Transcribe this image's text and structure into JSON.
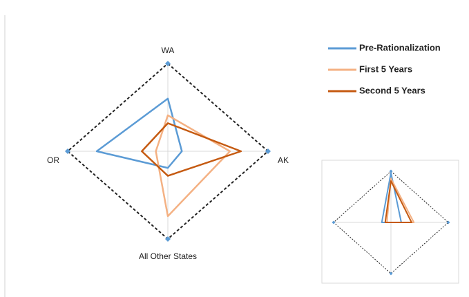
{
  "chart_data": [
    {
      "type": "radar",
      "categories": [
        "WA",
        "AK",
        "All Other States",
        "OR"
      ],
      "rlim": [
        0,
        1
      ],
      "grid": true,
      "series": [
        {
          "name": "Pre-Rationalization",
          "color": "#5b9bd5",
          "values": [
            0.6,
            0.14,
            0.19,
            0.71
          ]
        },
        {
          "name": "First 5 Years",
          "color": "#f4b183",
          "values": [
            0.41,
            0.62,
            0.74,
            0.12
          ]
        },
        {
          "name": "Second 5 Years",
          "color": "#c55a11",
          "values": [
            0.32,
            0.73,
            0.28,
            0.26
          ]
        }
      ]
    },
    {
      "type": "radar",
      "rlim": [
        0,
        1
      ],
      "grid": true,
      "series": [
        {
          "color": "#5b9bd5",
          "values": [
            0.97,
            0.18,
            0,
            0.16
          ]
        },
        {
          "color": "#f4b183",
          "values": [
            0.86,
            0.4,
            0,
            0.07
          ]
        },
        {
          "color": "#c55a11",
          "values": [
            0.81,
            0.36,
            0,
            0.1
          ]
        }
      ]
    }
  ]
}
